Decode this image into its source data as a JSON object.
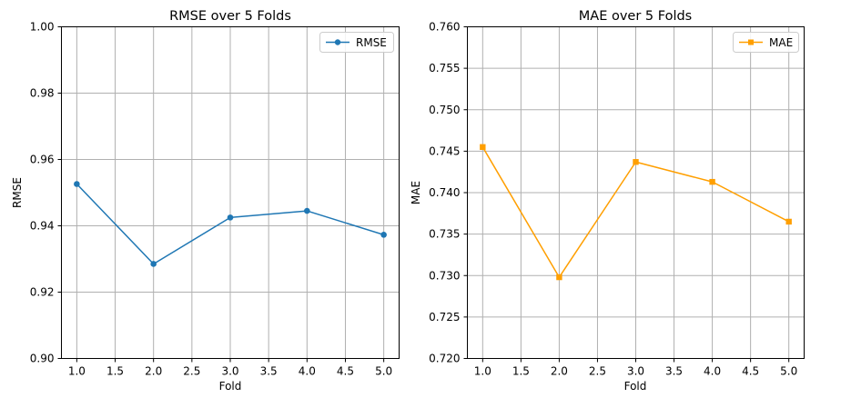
{
  "chart_data": [
    {
      "type": "line",
      "title": "RMSE over 5 Folds",
      "xlabel": "Fold",
      "ylabel": "RMSE",
      "x": [
        1.0,
        2.0,
        3.0,
        4.0,
        5.0
      ],
      "series": [
        {
          "name": "RMSE",
          "values": [
            0.9526,
            0.9285,
            0.9425,
            0.9445,
            0.9373
          ],
          "color": "#1f77b4",
          "marker": "circle"
        }
      ],
      "xlim": [
        0.8,
        5.2
      ],
      "ylim": [
        0.9,
        1.0
      ],
      "xticks": [
        "1.0",
        "1.5",
        "2.0",
        "2.5",
        "3.0",
        "3.5",
        "4.0",
        "4.5",
        "5.0"
      ],
      "yticks": [
        "0.90",
        "0.92",
        "0.94",
        "0.96",
        "0.98",
        "1.00"
      ],
      "grid": true,
      "legend_position": "top-right"
    },
    {
      "type": "line",
      "title": "MAE over 5 Folds",
      "xlabel": "Fold",
      "ylabel": "MAE",
      "x": [
        1.0,
        2.0,
        3.0,
        4.0,
        5.0
      ],
      "series": [
        {
          "name": "MAE",
          "values": [
            0.7455,
            0.7298,
            0.7437,
            0.7413,
            0.7365
          ],
          "color": "#ff9f00",
          "marker": "square"
        }
      ],
      "xlim": [
        0.8,
        5.2
      ],
      "ylim": [
        0.72,
        0.76
      ],
      "xticks": [
        "1.0",
        "1.5",
        "2.0",
        "2.5",
        "3.0",
        "3.5",
        "4.0",
        "4.5",
        "5.0"
      ],
      "yticks": [
        "0.720",
        "0.725",
        "0.730",
        "0.735",
        "0.740",
        "0.745",
        "0.750",
        "0.755",
        "0.760"
      ],
      "grid": true,
      "legend_position": "top-right"
    }
  ]
}
